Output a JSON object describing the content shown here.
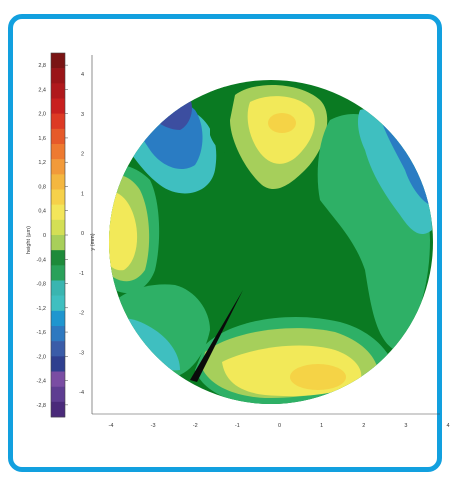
{
  "chart_data": {
    "type": "heatmap",
    "colorbar": {
      "label": "height (µm)",
      "min": -3.0,
      "max": 3.0,
      "step": 0.2,
      "tick_labels": [
        "2,8",
        "2,4",
        "2,0",
        "1,6",
        "1,2",
        "0,8",
        "0,4",
        "0",
        "-0,4",
        "-0,8",
        "-1,2",
        "-1,6",
        "-2,0",
        "-2,4",
        "-2,8"
      ],
      "colors": [
        "#4a2a7a",
        "#5e3d91",
        "#7a4da3",
        "#2f3f8f",
        "#3a5ca8",
        "#2e79c0",
        "#1f96cf",
        "#3fbfc0",
        "#3ab5b0",
        "#2aa15a",
        "#1e8a3a",
        "#a8cf5a",
        "#d4df55",
        "#f3e65a",
        "#f6d14a",
        "#f4b740",
        "#f29a3a",
        "#ee7a30",
        "#e65a2a",
        "#dd3a24",
        "#c8201f",
        "#b0191c",
        "#9a1518",
        "#7a1414"
      ]
    },
    "xlabel": "",
    "ylabel": "y (mm)",
    "x_ticks": [
      "-4",
      "-3",
      "-2",
      "-1",
      "0",
      "1",
      "2",
      "3",
      "4"
    ],
    "y_ticks": [
      "4",
      "3",
      "2",
      "1",
      "0",
      "-1",
      "-2",
      "-3",
      "-4"
    ],
    "xlim": [
      -4,
      4
    ],
    "ylim": [
      -4.5,
      4.5
    ],
    "regions": [
      {
        "level": 0.0,
        "color": "#0a7a22"
      },
      {
        "level": -0.4,
        "color": "#2eb066"
      },
      {
        "level": -0.8,
        "color": "#3fbfc0"
      },
      {
        "level": -1.2,
        "color": "#2a7cc3"
      },
      {
        "level": -2.0,
        "color": "#3c4ea0"
      },
      {
        "level": -2.6,
        "color": "#7a4da3"
      },
      {
        "level": 0.4,
        "color": "#a6cf5b"
      },
      {
        "level": 0.8,
        "color": "#f2e959"
      },
      {
        "level": 1.2,
        "color": "#f5d346"
      }
    ]
  }
}
